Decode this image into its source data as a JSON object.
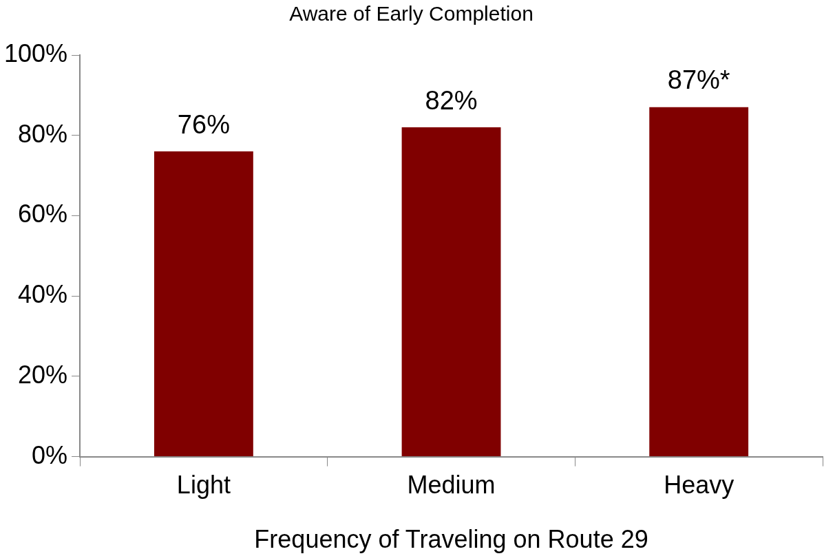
{
  "chart_data": {
    "type": "bar",
    "title": "Aware of Early Completion",
    "xlabel": "Frequency of Traveling on Route 29",
    "categories": [
      "Light",
      "Medium",
      "Heavy"
    ],
    "values": [
      76,
      82,
      87
    ],
    "value_labels": [
      "76%",
      "82%",
      "87%*"
    ],
    "color": "#800000",
    "ylim": [
      0,
      100
    ],
    "yticks": [
      {
        "value": 0,
        "label": "0%"
      },
      {
        "value": 20,
        "label": "20%"
      },
      {
        "value": 40,
        "label": "40%"
      },
      {
        "value": 60,
        "label": "60%"
      },
      {
        "value": 80,
        "label": "80%"
      },
      {
        "value": 100,
        "label": "100%"
      }
    ],
    "grid": false,
    "legend": false
  }
}
